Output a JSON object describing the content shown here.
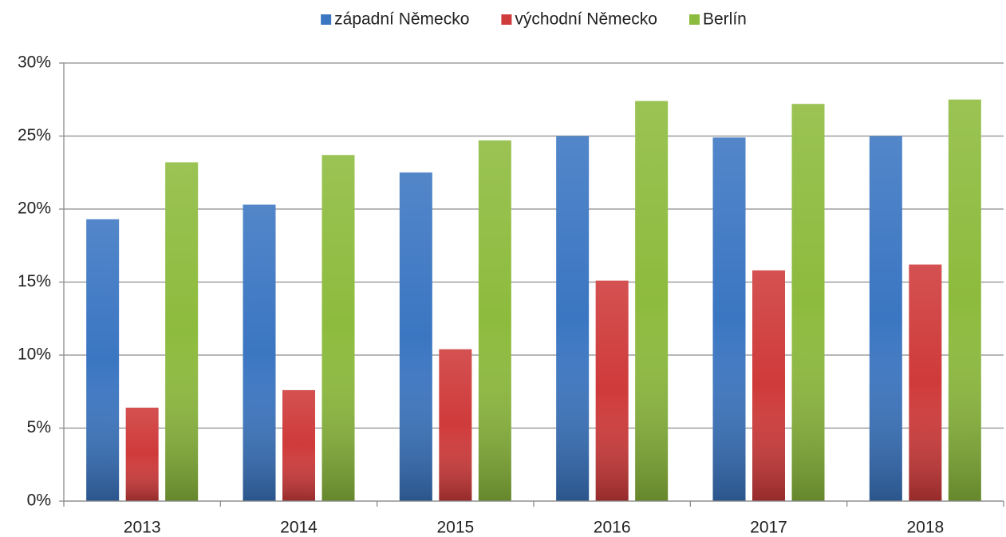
{
  "chart_data": {
    "type": "bar",
    "categories": [
      "2013",
      "2014",
      "2015",
      "2016",
      "2017",
      "2018"
    ],
    "series": [
      {
        "name": "západní Německo",
        "color": "#3b76c2",
        "values": [
          19.3,
          20.3,
          22.5,
          25.0,
          24.9,
          25.0
        ]
      },
      {
        "name": "východní Německo",
        "color": "#cf3a3a",
        "values": [
          6.4,
          7.6,
          10.4,
          15.1,
          15.8,
          16.2
        ]
      },
      {
        "name": "Berlín",
        "color": "#8dbb3d",
        "values": [
          23.2,
          23.7,
          24.7,
          27.4,
          27.2,
          27.5
        ]
      }
    ],
    "ylim": [
      0,
      30
    ],
    "yticks": [
      {
        "value": 0,
        "label": "0%"
      },
      {
        "value": 5,
        "label": "5%"
      },
      {
        "value": 10,
        "label": "10%"
      },
      {
        "value": 15,
        "label": "15%"
      },
      {
        "value": 20,
        "label": "20%"
      },
      {
        "value": 25,
        "label": "25%"
      },
      {
        "value": 30,
        "label": "30%"
      }
    ],
    "grid": true,
    "legend": "top"
  }
}
